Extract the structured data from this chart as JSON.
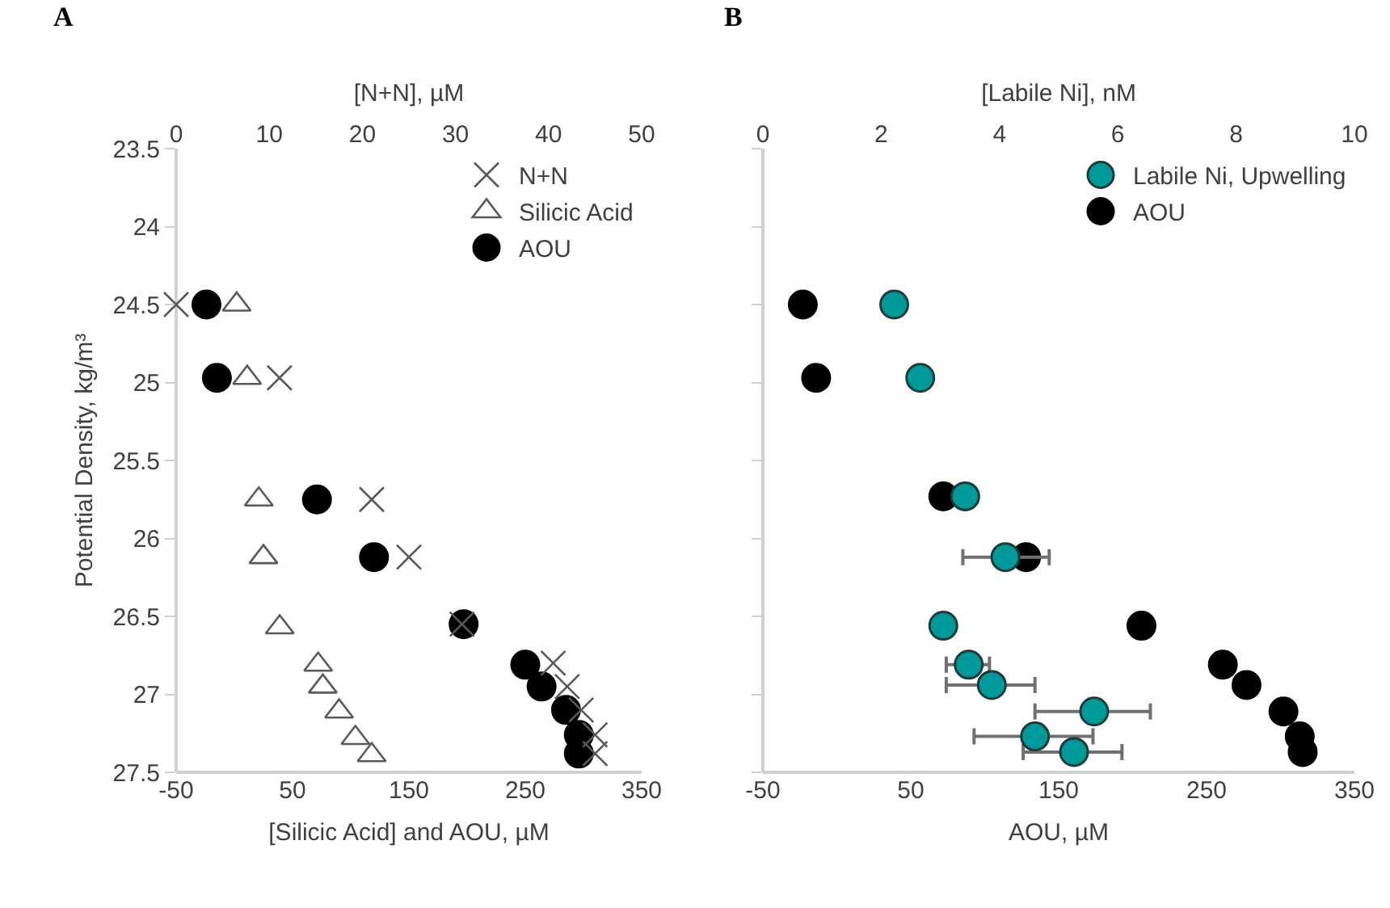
{
  "chart_data": [
    {
      "type": "scatter",
      "title": "A",
      "xlabel": "[Silicic Acid] and AOU, µM",
      "x2label": "[N+N], µM",
      "ylabel": "Potential Density, kg/m³",
      "xlim": [
        -50,
        350
      ],
      "xticks": [
        -50,
        50,
        150,
        250,
        350
      ],
      "x2lim": [
        0,
        50
      ],
      "x2ticks": [
        0,
        10,
        20,
        30,
        40,
        50
      ],
      "ylim": [
        27.5,
        23.5
      ],
      "yticks": [
        23.5,
        24,
        24.5,
        25,
        25.5,
        26,
        26.5,
        27,
        27.5
      ],
      "grid": false,
      "legend": "top right",
      "series": [
        {
          "name": "N+N",
          "axis": "x2",
          "marker": "cross",
          "color": "#595959",
          "x": [
            0,
            11.1,
            21,
            25,
            30.7,
            40.5,
            42,
            43.5,
            45,
            45
          ],
          "values": [
            24.5,
            24.97,
            25.75,
            26.12,
            26.55,
            26.8,
            26.95,
            27.1,
            27.26,
            27.38
          ]
        },
        {
          "name": "Silicic Acid",
          "marker": "triangle",
          "color": "#595959",
          "x": [
            2,
            11,
            21,
            25,
            39,
            72,
            76,
            90,
            104,
            118
          ],
          "values": [
            24.5,
            24.97,
            25.75,
            26.12,
            26.57,
            26.81,
            26.95,
            27.11,
            27.28,
            27.39
          ]
        },
        {
          "name": "AOU",
          "marker": "circle",
          "color": "#000000",
          "x": [
            -24,
            -15,
            71,
            120,
            197,
            250,
            264,
            285,
            296,
            296
          ],
          "values": [
            24.5,
            24.97,
            25.75,
            26.12,
            26.55,
            26.81,
            26.95,
            27.1,
            27.26,
            27.38
          ]
        }
      ]
    },
    {
      "type": "scatter",
      "title": "B",
      "xlabel": "AOU, µM",
      "x2label": "[Labile Ni], nM",
      "xlim": [
        -50,
        350
      ],
      "xticks": [
        -50,
        50,
        150,
        250,
        350
      ],
      "x2lim": [
        0,
        10
      ],
      "x2ticks": [
        0,
        2,
        4,
        6,
        8,
        10
      ],
      "ylim": [
        27.5,
        23.5
      ],
      "yticks": [
        23.5,
        24,
        24.5,
        25,
        25.5,
        26,
        26.5,
        27,
        27.5
      ],
      "tick_labels": "x",
      "grid": false,
      "legend": "top right",
      "series": [
        {
          "name": "Labile Ni, Upwelling",
          "axis": "x2",
          "marker": "circle",
          "color": "#009999",
          "x": [
            2.22,
            2.66,
            3.42,
            4.1,
            3.05,
            3.48,
            3.87,
            5.6,
            4.6,
            5.26
          ],
          "values": [
            24.5,
            24.97,
            25.73,
            26.12,
            26.56,
            26.81,
            26.94,
            27.11,
            27.27,
            27.37
          ],
          "xerrors": [
            null,
            null,
            null,
            [
              3.38,
              4.84
            ],
            null,
            [
              3.1,
              3.83
            ],
            [
              3.1,
              4.6
            ],
            [
              4.6,
              6.55
            ],
            [
              3.57,
              5.58
            ],
            [
              4.4,
              6.07
            ]
          ]
        },
        {
          "name": "AOU",
          "marker": "circle",
          "color": "#000000",
          "x": [
            -23,
            -14,
            72,
            128,
            206,
            261,
            277,
            302,
            313,
            315
          ],
          "values": [
            24.5,
            24.97,
            25.73,
            26.12,
            26.56,
            26.81,
            26.94,
            27.11,
            27.27,
            27.37
          ]
        }
      ]
    }
  ]
}
